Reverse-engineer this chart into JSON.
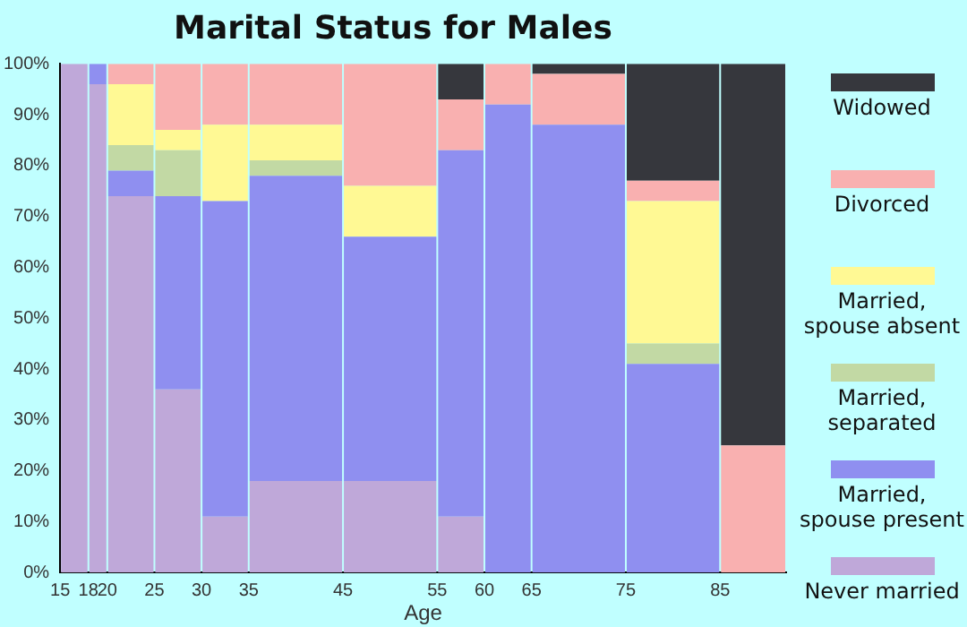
{
  "chart_data": {
    "type": "bar",
    "title": "Marital Status for Males",
    "xlabel": "Age",
    "stacked": true,
    "x": [
      16.5,
      19,
      22.5,
      27.5,
      32.5,
      40,
      50,
      57.5,
      62.5,
      70,
      80,
      88.5
    ],
    "xlim": [
      15,
      92
    ],
    "xticks": [
      15,
      18,
      20,
      25,
      30,
      35,
      45,
      55,
      60,
      65,
      75,
      85
    ],
    "ylim": [
      0,
      100
    ],
    "yticks": [
      {
        "value": 0,
        "label": "0%"
      },
      {
        "value": 10,
        "label": "10%"
      },
      {
        "value": 20,
        "label": "20%"
      },
      {
        "value": 30,
        "label": "30%"
      },
      {
        "value": 40,
        "label": "40%"
      },
      {
        "value": 50,
        "label": "50%"
      },
      {
        "value": 60,
        "label": "60%"
      },
      {
        "value": 70,
        "label": "70%"
      },
      {
        "value": 80,
        "label": "80%"
      },
      {
        "value": 90,
        "label": "90%"
      },
      {
        "value": 100,
        "label": "100%"
      }
    ],
    "grid": false,
    "legend": "right",
    "series": [
      {
        "name": "Never married",
        "color": "#bfa8d9",
        "values": [
          100,
          96,
          74,
          36,
          11,
          18,
          18,
          11,
          0,
          0,
          0,
          0
        ]
      },
      {
        "name": "Married, spouse present",
        "color": "#8f8ff0",
        "values": [
          0,
          4,
          5,
          38,
          62,
          60,
          48,
          72,
          92,
          88,
          41,
          0
        ]
      },
      {
        "name": "Married, separated",
        "color": "#c2d9a4",
        "values": [
          0,
          0,
          5,
          9,
          0,
          3,
          0,
          0,
          0,
          0,
          4,
          0
        ]
      },
      {
        "name": "Married, spouse absent",
        "color": "#fff994",
        "values": [
          0,
          0,
          12,
          4,
          15,
          7,
          10,
          0,
          0,
          0,
          28,
          0
        ]
      },
      {
        "name": "Divorced",
        "color": "#f9b0b0",
        "values": [
          0,
          0,
          4,
          13,
          12,
          12,
          24,
          10,
          8,
          10,
          4,
          25
        ]
      },
      {
        "name": "Widowed",
        "color": "#36373d",
        "values": [
          0,
          0,
          0,
          0,
          0,
          0,
          0,
          7,
          0,
          2,
          23,
          75
        ]
      }
    ]
  }
}
